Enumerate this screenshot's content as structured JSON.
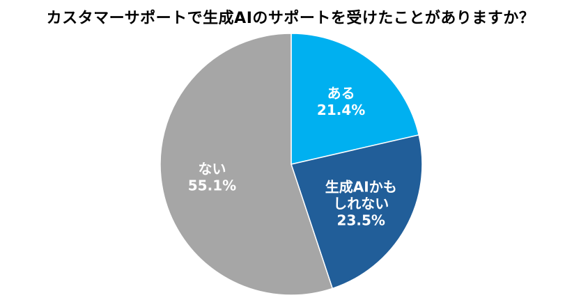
{
  "chart_data": {
    "type": "pie",
    "title": "カスタマーサポートで生成AIのサポートを受けたことがありますか？",
    "slices": [
      {
        "label": "ある",
        "value": 21.4,
        "display": "21.4%",
        "color": "#00b0f0"
      },
      {
        "label": "生成AIかもしれない",
        "label_lines": [
          "生成AIかも",
          "しれない"
        ],
        "value": 23.5,
        "display": "23.5%",
        "color": "#215e99"
      },
      {
        "label": "ない",
        "value": 55.1,
        "display": "55.1%",
        "color": "#a6a6a6"
      }
    ],
    "start_angle": "12 o'clock",
    "direction": "clockwise",
    "legend": "none",
    "labels": "inside"
  }
}
